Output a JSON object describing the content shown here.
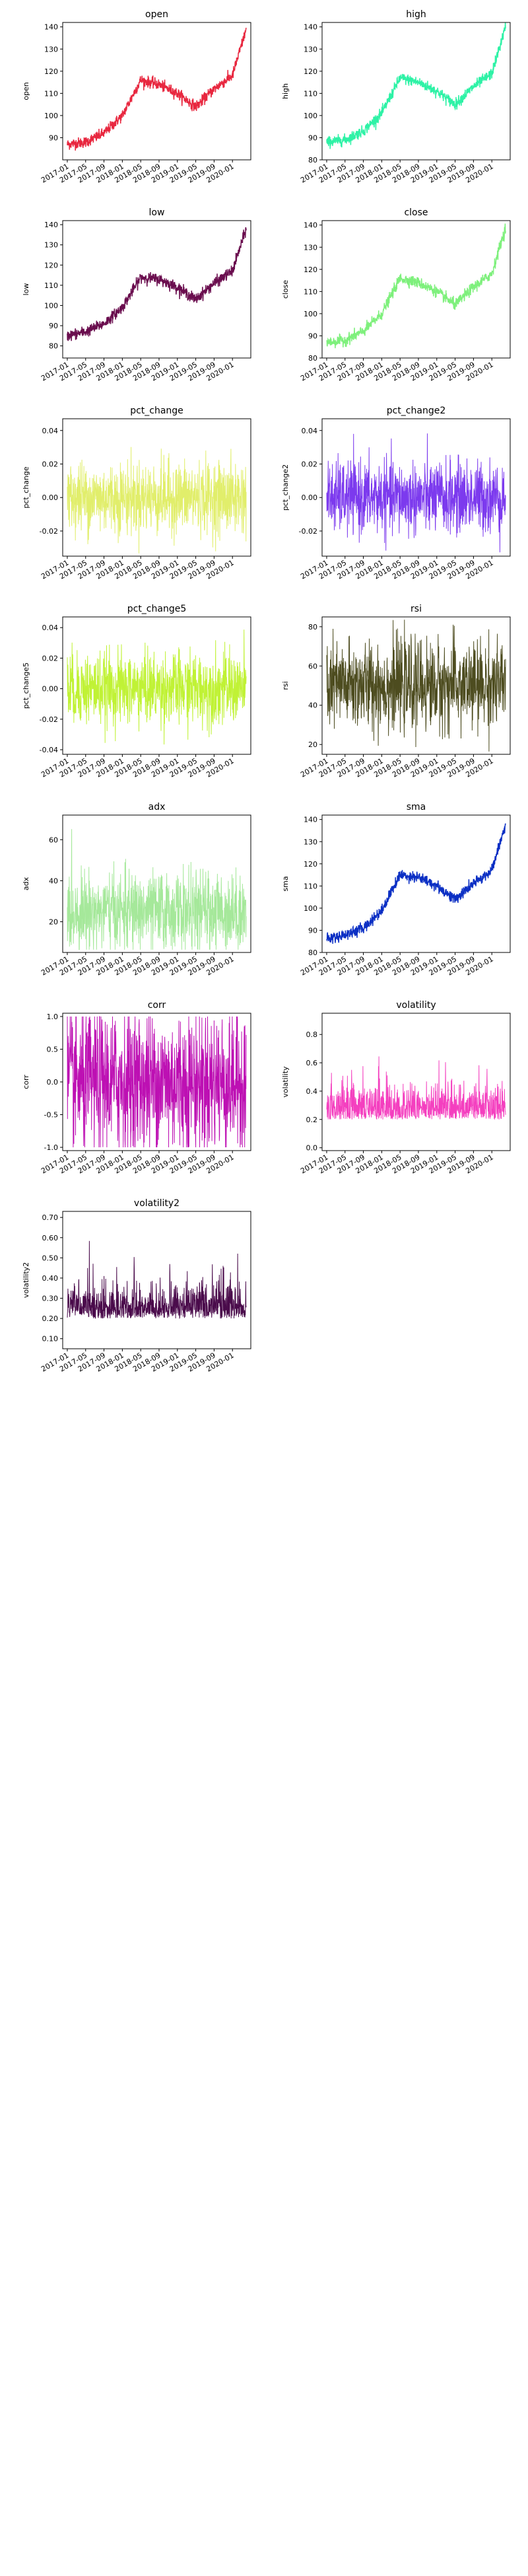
{
  "chart_data": [
    {
      "type": "line",
      "title": "open",
      "ylabel": "open",
      "color": "#e8273f",
      "ylim": [
        80,
        142
      ],
      "yticks": [
        90,
        100,
        110,
        120,
        130,
        140
      ],
      "x": [
        "2017-01",
        "2017-05",
        "2017-09",
        "2018-01",
        "2018-05",
        "2018-09",
        "2019-01",
        "2019-05",
        "2019-09",
        "2020-01",
        "2020-04"
      ],
      "y": [
        87,
        88,
        92,
        100,
        116,
        114,
        110,
        104,
        112,
        118,
        139
      ]
    },
    {
      "type": "line",
      "title": "high",
      "ylabel": "high",
      "color": "#2ef2a6",
      "ylim": [
        80,
        142
      ],
      "yticks": [
        80,
        90,
        100,
        110,
        120,
        130,
        140
      ],
      "x": [
        "2017-01",
        "2017-05",
        "2017-09",
        "2018-01",
        "2018-05",
        "2018-09",
        "2019-01",
        "2019-05",
        "2019-09",
        "2020-01",
        "2020-04"
      ],
      "y": [
        88,
        89,
        93,
        101,
        117,
        115,
        111,
        105,
        113,
        119,
        140
      ]
    },
    {
      "type": "line",
      "title": "low",
      "ylabel": "low",
      "color": "#6a0d4e",
      "ylim": [
        74,
        142
      ],
      "yticks": [
        80,
        90,
        100,
        110,
        120,
        130,
        140
      ],
      "x": [
        "2017-01",
        "2017-05",
        "2017-09",
        "2018-01",
        "2018-05",
        "2018-09",
        "2019-01",
        "2019-05",
        "2019-09",
        "2020-01",
        "2020-04"
      ],
      "y": [
        85,
        87,
        91,
        99,
        114,
        113,
        109,
        103,
        111,
        117,
        138
      ]
    },
    {
      "type": "line",
      "title": "close",
      "ylabel": "close",
      "color": "#7ef07c",
      "ylim": [
        80,
        142
      ],
      "yticks": [
        80,
        90,
        100,
        110,
        120,
        130,
        140
      ],
      "x": [
        "2017-01",
        "2017-05",
        "2017-09",
        "2018-01",
        "2018-05",
        "2018-09",
        "2019-01",
        "2019-05",
        "2019-09",
        "2020-01",
        "2020-04"
      ],
      "y": [
        87,
        88,
        92,
        100,
        116,
        114,
        110,
        104,
        112,
        118,
        139
      ]
    },
    {
      "type": "line",
      "title": "pct_change",
      "ylabel": "pct_change",
      "color": "#e1ee6b",
      "ylim": [
        -0.035,
        0.047
      ],
      "yticks": [
        -0.02,
        0.0,
        0.02,
        0.04
      ],
      "noise": true,
      "x": [
        "2017-01",
        "2020-04"
      ],
      "y": [
        0.0,
        0.0
      ]
    },
    {
      "type": "line",
      "title": "pct_change2",
      "ylabel": "pct_change2",
      "color": "#7c3aee",
      "ylim": [
        -0.035,
        0.047
      ],
      "yticks": [
        -0.02,
        0.0,
        0.02,
        0.04
      ],
      "noise": true,
      "x": [
        "2017-01",
        "2020-04"
      ],
      "y": [
        0.0,
        0.0
      ]
    },
    {
      "type": "line",
      "title": "pct_change5",
      "ylabel": "pct_change5",
      "color": "#c0f235",
      "ylim": [
        -0.043,
        0.047
      ],
      "yticks": [
        -0.04,
        -0.02,
        0.0,
        0.02,
        0.04
      ],
      "noise": true,
      "x": [
        "2017-01",
        "2020-04"
      ],
      "y": [
        0.0,
        0.0
      ]
    },
    {
      "type": "line",
      "title": "rsi",
      "ylabel": "rsi",
      "color": "#4d4c1f",
      "ylim": [
        15,
        85
      ],
      "yticks": [
        20,
        40,
        60,
        80
      ],
      "noise": true,
      "x": [
        "2017-01",
        "2020-04"
      ],
      "y": [
        50,
        50
      ]
    },
    {
      "type": "line",
      "title": "adx",
      "ylabel": "adx",
      "color": "#a5e89a",
      "ylim": [
        5,
        72
      ],
      "yticks": [
        20,
        40,
        60
      ],
      "noise": true,
      "x": [
        "2017-01",
        "2020-04"
      ],
      "y": [
        25,
        25
      ]
    },
    {
      "type": "line",
      "title": "sma",
      "ylabel": "sma",
      "color": "#0b2fc4",
      "ylim": [
        80,
        142
      ],
      "yticks": [
        80,
        90,
        100,
        110,
        120,
        130,
        140
      ],
      "x": [
        "2017-01",
        "2017-05",
        "2017-09",
        "2018-01",
        "2018-05",
        "2018-09",
        "2019-01",
        "2019-05",
        "2019-09",
        "2020-01",
        "2020-04"
      ],
      "y": [
        86,
        88,
        91,
        99,
        115,
        114,
        110,
        104,
        111,
        117,
        138
      ]
    },
    {
      "type": "line",
      "title": "corr",
      "ylabel": "corr",
      "color": "#bd10b3",
      "ylim": [
        -1.05,
        1.05
      ],
      "yticks": [
        -1.0,
        -0.5,
        0.0,
        0.5,
        1.0
      ],
      "noise": true,
      "x": [
        "2017-01",
        "2020-04"
      ],
      "y": [
        0.0,
        0.0
      ]
    },
    {
      "type": "line",
      "title": "volatility",
      "ylabel": "volatility",
      "color": "#f43fbf",
      "ylim": [
        -0.02,
        0.95
      ],
      "yticks": [
        0.0,
        0.2,
        0.4,
        0.6,
        0.8
      ],
      "noise": true,
      "x": [
        "2017-01",
        "2020-04"
      ],
      "y": [
        0.2,
        0.2
      ]
    },
    {
      "type": "line",
      "title": "volatility2",
      "ylabel": "volatility2",
      "color": "#4a0b4b",
      "ylim": [
        0.05,
        0.73
      ],
      "yticks": [
        0.1,
        0.2,
        0.3,
        0.4,
        0.5,
        0.6,
        0.7
      ],
      "noise": true,
      "x": [
        "2017-01",
        "2020-04"
      ],
      "y": [
        0.2,
        0.2
      ]
    }
  ],
  "xticks": [
    "2017-01",
    "2017-05",
    "2017-09",
    "2018-01",
    "2018-05",
    "2018-09",
    "2019-01",
    "2019-05",
    "2019-09",
    "2020-01"
  ]
}
